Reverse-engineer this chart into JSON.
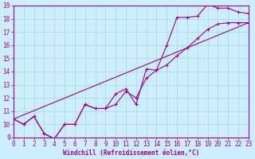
{
  "xlabel": "Windchill (Refroidissement éolien,°C)",
  "bg_color": "#cceeff",
  "line_color": "#990099",
  "grid_color": "#aadddd",
  "xmin": 0,
  "xmax": 23,
  "ymin": 9,
  "ymax": 19,
  "line1_x": [
    0,
    1,
    2,
    3,
    4,
    5,
    6,
    7,
    8,
    9,
    10,
    11,
    12,
    13,
    14,
    15,
    16,
    17,
    18,
    19,
    20,
    21,
    22,
    23
  ],
  "line1_y": [
    10.4,
    10.0,
    10.6,
    9.3,
    8.9,
    10.0,
    10.0,
    11.5,
    11.2,
    11.2,
    12.3,
    12.7,
    11.5,
    14.2,
    14.1,
    16.0,
    18.1,
    18.1,
    18.2,
    19.1,
    18.8,
    18.8,
    18.5,
    18.4
  ],
  "line2_x": [
    0,
    1,
    2,
    3,
    4,
    5,
    6,
    7,
    8,
    9,
    10,
    11,
    12,
    13,
    14,
    15,
    16,
    17,
    18,
    19,
    20,
    21,
    22,
    23
  ],
  "line2_y": [
    10.4,
    10.0,
    10.6,
    9.3,
    8.9,
    10.0,
    10.0,
    11.5,
    11.2,
    11.2,
    11.5,
    12.5,
    12.0,
    13.5,
    14.1,
    14.5,
    15.2,
    15.8,
    16.5,
    17.2,
    17.6,
    17.7,
    17.7,
    17.7
  ],
  "line3_x": [
    0,
    23
  ],
  "line3_y": [
    10.4,
    17.7
  ],
  "xticks": [
    0,
    1,
    2,
    3,
    4,
    5,
    6,
    7,
    8,
    9,
    10,
    11,
    12,
    13,
    14,
    15,
    16,
    17,
    18,
    19,
    20,
    21,
    22,
    23
  ],
  "yticks": [
    9,
    10,
    11,
    12,
    13,
    14,
    15,
    16,
    17,
    18,
    19
  ],
  "xlabel_fontsize": 5.5,
  "tick_fontsize": 5.5
}
